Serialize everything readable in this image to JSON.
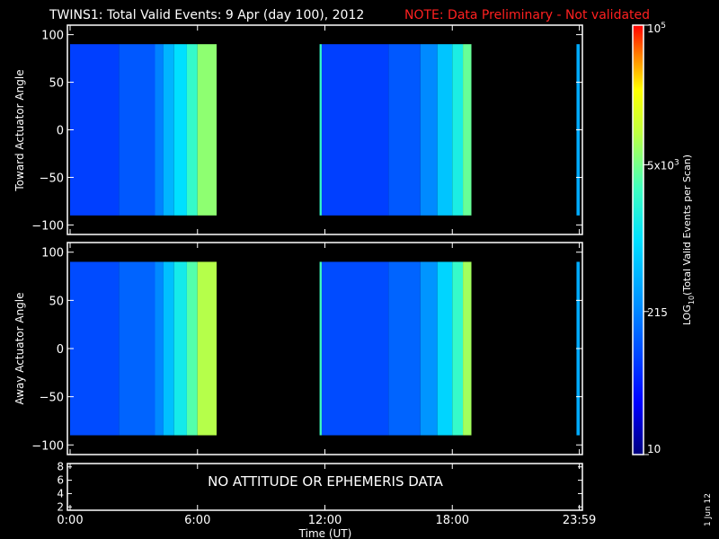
{
  "title": "TWINS1: Total Valid Events:  9 Apr (day 100), 2012",
  "note": "NOTE: Data Preliminary - Not validated",
  "stamp": "1 Jun 12",
  "colors": {
    "note": "#ff2020",
    "background": "#000000",
    "axes": "#ffffff"
  },
  "chart_data": [
    {
      "type": "heatmap",
      "name": "toward",
      "ylabel": "Toward Actuator Angle",
      "ylim": [
        -110,
        110
      ],
      "yticks": [
        100,
        50,
        0,
        -50,
        -100
      ],
      "xlim": [
        0,
        24
      ],
      "data_range": [
        -90,
        90
      ],
      "segments": [
        {
          "start": "0:00",
          "end": "6:50",
          "fill_hour": 6.9
        },
        {
          "start": "11:45",
          "end": "18:50",
          "fill_hour": 18.9
        },
        {
          "start": "23:50",
          "end": "24:00",
          "fill_hour": 24.0
        }
      ],
      "levels": [
        {
          "from": 0,
          "to": 2.3,
          "level": 0.22
        },
        {
          "from": 2.3,
          "to": 4.0,
          "level": 0.26
        },
        {
          "from": 4.0,
          "to": 4.4,
          "level": 0.33
        },
        {
          "from": 4.4,
          "to": 4.9,
          "level": 0.42
        },
        {
          "from": 4.9,
          "to": 5.5,
          "level": 0.5
        },
        {
          "from": 5.5,
          "to": 6.0,
          "level": 0.6
        },
        {
          "from": 6.0,
          "to": 6.9,
          "level": 0.7
        },
        {
          "from": 11.75,
          "to": 11.85,
          "level": 0.6
        },
        {
          "from": 11.85,
          "to": 15.0,
          "level": 0.22
        },
        {
          "from": 15.0,
          "to": 16.5,
          "level": 0.26
        },
        {
          "from": 16.5,
          "to": 17.3,
          "level": 0.34
        },
        {
          "from": 17.3,
          "to": 18.0,
          "level": 0.45
        },
        {
          "from": 18.0,
          "to": 18.5,
          "level": 0.55
        },
        {
          "from": 18.5,
          "to": 18.9,
          "level": 0.66
        },
        {
          "from": 23.85,
          "to": 24.0,
          "level": 0.4
        }
      ]
    },
    {
      "type": "heatmap",
      "name": "away",
      "ylabel": "Away Actuator Angle",
      "ylim": [
        -110,
        110
      ],
      "yticks": [
        100,
        50,
        0,
        -50,
        -100
      ],
      "xlim": [
        0,
        24
      ],
      "data_range": [
        -90,
        90
      ],
      "segments": [
        {
          "start": "0:00",
          "end": "6:50",
          "fill_hour": 6.9
        },
        {
          "start": "11:45",
          "end": "18:50",
          "fill_hour": 18.9
        },
        {
          "start": "23:50",
          "end": "24:00",
          "fill_hour": 24.0
        }
      ],
      "levels": [
        {
          "from": 0,
          "to": 2.3,
          "level": 0.24
        },
        {
          "from": 2.3,
          "to": 4.0,
          "level": 0.28
        },
        {
          "from": 4.0,
          "to": 4.4,
          "level": 0.34
        },
        {
          "from": 4.4,
          "to": 4.9,
          "level": 0.44
        },
        {
          "from": 4.9,
          "to": 5.5,
          "level": 0.54
        },
        {
          "from": 5.5,
          "to": 6.0,
          "level": 0.64
        },
        {
          "from": 6.0,
          "to": 6.9,
          "level": 0.74
        },
        {
          "from": 11.75,
          "to": 11.85,
          "level": 0.62
        },
        {
          "from": 11.85,
          "to": 15.0,
          "level": 0.24
        },
        {
          "from": 15.0,
          "to": 16.5,
          "level": 0.28
        },
        {
          "from": 16.5,
          "to": 17.3,
          "level": 0.36
        },
        {
          "from": 17.3,
          "to": 18.0,
          "level": 0.48
        },
        {
          "from": 18.0,
          "to": 18.5,
          "level": 0.6
        },
        {
          "from": 18.5,
          "to": 18.9,
          "level": 0.72
        },
        {
          "from": 23.85,
          "to": 24.0,
          "level": 0.4
        }
      ]
    },
    {
      "type": "line",
      "name": "attitude",
      "ylim": [
        1.5,
        8.5
      ],
      "yticks": [
        8,
        6,
        4,
        2
      ],
      "xlim": [
        0,
        24
      ],
      "message": "NO ATTITUDE OR EPHEMERIS DATA",
      "xlabel": "Time (UT)",
      "xticks": [
        {
          "hour": 0,
          "label": "0:00"
        },
        {
          "hour": 6,
          "label": "6:00"
        },
        {
          "hour": 12,
          "label": "12:00"
        },
        {
          "hour": 18,
          "label": "18:00"
        },
        {
          "hour": 23.983,
          "label": "23:59"
        }
      ]
    }
  ],
  "colorbar": {
    "label": "LOG10(Total Valid Events per Scan)",
    "label_base": "LOG",
    "label_sub": "10",
    "label_rest": "(Total Valid Events per Scan)",
    "range": [
      10,
      100000
    ],
    "scale": "log",
    "ticks": [
      {
        "value": 100000,
        "label": "10",
        "sup": "5"
      },
      {
        "value": 5000,
        "label": "5x10",
        "sup": "3"
      },
      {
        "value": 215,
        "label": "215",
        "sup": ""
      },
      {
        "value": 10,
        "label": "10",
        "sup": ""
      }
    ]
  }
}
